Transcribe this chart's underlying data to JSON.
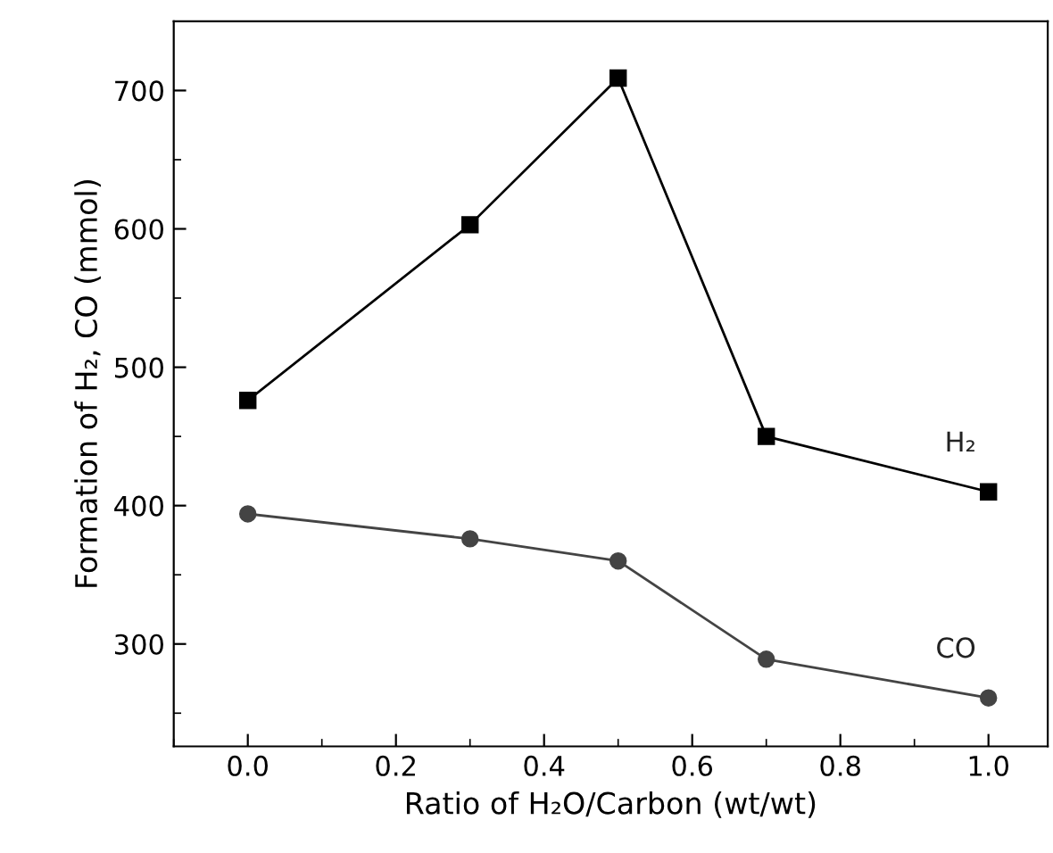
{
  "chart_data": {
    "type": "line",
    "xlabel": "Ratio of H₂O/Carbon (wt/wt)",
    "ylabel": "Formation of H₂, CO (mmol)",
    "x": [
      0.0,
      0.3,
      0.5,
      0.7,
      1.0
    ],
    "series": [
      {
        "name": "H₂",
        "color": "#000000",
        "marker": "square",
        "values": [
          476,
          603,
          709,
          450,
          410
        ]
      },
      {
        "name": "CO",
        "color": "#444444",
        "marker": "circle",
        "values": [
          394,
          376,
          360,
          289,
          261
        ]
      }
    ],
    "xlim": [
      -0.1,
      1.08
    ],
    "ylim": [
      226,
      750
    ],
    "xticks": [
      {
        "value": 0,
        "label": "0.0"
      },
      0.2,
      0.4,
      0.6,
      0.8,
      {
        "value": 1,
        "label": "1.0"
      }
    ],
    "yticks": [
      300,
      400,
      500,
      600,
      700
    ],
    "grid": false,
    "legend": false,
    "line_style": "solid"
  }
}
